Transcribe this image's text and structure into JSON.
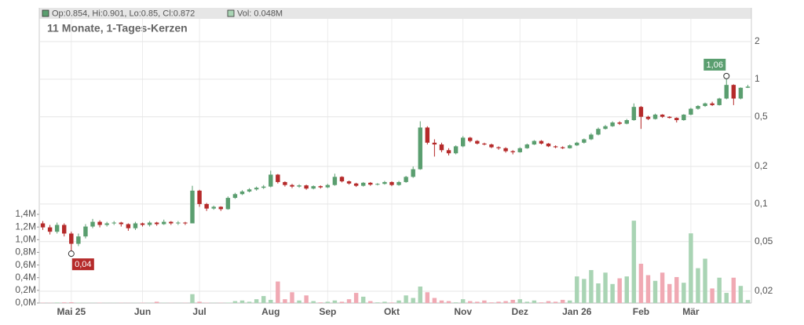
{
  "chart_data": {
    "type": "candlestick",
    "title": "11 Monate, 1-Tages-Kerzen",
    "ohlc_label": "Op:0.854, Hi:0.901, Lo:0.85, Cl:0.872",
    "volume_label": "Vol: 0.048M",
    "low_label": "0,04",
    "high_label": "1,06",
    "up_color": "#5a9e6f",
    "down_color": "#b52a2a",
    "volume_up_color": "#a9d4b4",
    "volume_down_color": "#f0a9b3",
    "log_scale": true,
    "grid": true,
    "categories": [
      null,
      null,
      null,
      null,
      "Mai 25",
      null,
      null,
      null,
      null,
      null,
      null,
      null,
      null,
      null,
      "Jun",
      null,
      null,
      null,
      null,
      null,
      null,
      null,
      "Jul",
      null,
      null,
      null,
      null,
      null,
      null,
      null,
      null,
      null,
      "Aug",
      null,
      null,
      null,
      null,
      null,
      null,
      null,
      "Sep",
      null,
      null,
      null,
      null,
      null,
      null,
      null,
      null,
      "Okt",
      null,
      null,
      null,
      null,
      null,
      null,
      null,
      null,
      null,
      "Nov",
      null,
      null,
      null,
      null,
      null,
      null,
      null,
      "Dez",
      null,
      null,
      null,
      null,
      null,
      null,
      null,
      "Jan 26",
      null,
      null,
      null,
      null,
      null,
      null,
      null,
      null,
      "Feb",
      null,
      null,
      null,
      null,
      null,
      null,
      "Mär",
      null,
      null,
      null,
      null,
      null,
      null,
      null,
      null
    ],
    "open": [
      0.07,
      0.065,
      0.06,
      0.068,
      0.058,
      0.048,
      0.055,
      0.066,
      0.072,
      0.068,
      0.07,
      0.071,
      0.069,
      0.064,
      0.07,
      0.068,
      0.071,
      0.069,
      0.072,
      0.07,
      0.071,
      0.07,
      0.128,
      0.1,
      0.092,
      0.095,
      0.091,
      0.112,
      0.12,
      0.126,
      0.131,
      0.135,
      0.138,
      0.172,
      0.15,
      0.142,
      0.138,
      0.141,
      0.133,
      0.139,
      0.136,
      0.142,
      0.165,
      0.152,
      0.146,
      0.14,
      0.148,
      0.143,
      0.145,
      0.15,
      0.142,
      0.15,
      0.165,
      0.19,
      0.41,
      0.31,
      0.3,
      0.27,
      0.255,
      0.29,
      0.34,
      0.32,
      0.305,
      0.3,
      0.285,
      0.28,
      0.265,
      0.26,
      0.28,
      0.3,
      0.32,
      0.305,
      0.29,
      0.285,
      0.28,
      0.295,
      0.31,
      0.33,
      0.36,
      0.4,
      0.42,
      0.45,
      0.44,
      0.47,
      0.6,
      0.5,
      0.48,
      0.52,
      0.5,
      0.49,
      0.47,
      0.52,
      0.58,
      0.61,
      0.64,
      0.62,
      0.7,
      0.9,
      0.7,
      0.854
    ],
    "high": [
      0.073,
      0.068,
      0.071,
      0.07,
      0.06,
      0.058,
      0.069,
      0.076,
      0.074,
      0.072,
      0.073,
      0.072,
      0.07,
      0.072,
      0.071,
      0.073,
      0.072,
      0.075,
      0.073,
      0.073,
      0.072,
      0.14,
      0.13,
      0.102,
      0.097,
      0.096,
      0.115,
      0.123,
      0.129,
      0.134,
      0.138,
      0.142,
      0.185,
      0.174,
      0.152,
      0.145,
      0.144,
      0.143,
      0.141,
      0.141,
      0.145,
      0.175,
      0.167,
      0.154,
      0.148,
      0.15,
      0.15,
      0.147,
      0.153,
      0.152,
      0.153,
      0.168,
      0.2,
      0.46,
      0.42,
      0.33,
      0.31,
      0.28,
      0.295,
      0.35,
      0.345,
      0.325,
      0.31,
      0.305,
      0.29,
      0.285,
      0.27,
      0.285,
      0.305,
      0.325,
      0.325,
      0.308,
      0.295,
      0.29,
      0.3,
      0.315,
      0.335,
      0.37,
      0.41,
      0.43,
      0.46,
      0.46,
      0.48,
      0.64,
      0.61,
      0.51,
      0.53,
      0.525,
      0.505,
      0.495,
      0.525,
      0.59,
      0.62,
      0.65,
      0.66,
      0.71,
      1.06,
      0.91,
      0.86,
      0.901
    ],
    "low": [
      0.062,
      0.057,
      0.058,
      0.055,
      0.04,
      0.046,
      0.053,
      0.064,
      0.065,
      0.066,
      0.068,
      0.066,
      0.061,
      0.062,
      0.066,
      0.066,
      0.067,
      0.068,
      0.068,
      0.068,
      0.068,
      0.07,
      0.095,
      0.088,
      0.09,
      0.088,
      0.09,
      0.11,
      0.118,
      0.124,
      0.128,
      0.132,
      0.136,
      0.146,
      0.138,
      0.134,
      0.135,
      0.13,
      0.131,
      0.133,
      0.134,
      0.14,
      0.149,
      0.143,
      0.137,
      0.138,
      0.14,
      0.141,
      0.143,
      0.139,
      0.14,
      0.148,
      0.162,
      0.188,
      0.3,
      0.24,
      0.26,
      0.245,
      0.25,
      0.285,
      0.312,
      0.3,
      0.295,
      0.28,
      0.272,
      0.258,
      0.25,
      0.258,
      0.277,
      0.297,
      0.3,
      0.286,
      0.28,
      0.276,
      0.278,
      0.292,
      0.305,
      0.325,
      0.355,
      0.395,
      0.415,
      0.43,
      0.435,
      0.465,
      0.4,
      0.47,
      0.475,
      0.49,
      0.485,
      0.45,
      0.465,
      0.515,
      0.57,
      0.6,
      0.61,
      0.615,
      0.69,
      0.62,
      0.69,
      0.85
    ],
    "close": [
      0.065,
      0.06,
      0.068,
      0.058,
      0.048,
      0.055,
      0.066,
      0.072,
      0.068,
      0.07,
      0.071,
      0.069,
      0.064,
      0.07,
      0.068,
      0.071,
      0.069,
      0.072,
      0.07,
      0.071,
      0.07,
      0.128,
      0.1,
      0.092,
      0.095,
      0.091,
      0.112,
      0.12,
      0.126,
      0.131,
      0.135,
      0.138,
      0.172,
      0.15,
      0.142,
      0.138,
      0.141,
      0.133,
      0.139,
      0.136,
      0.142,
      0.165,
      0.152,
      0.146,
      0.14,
      0.148,
      0.143,
      0.145,
      0.15,
      0.142,
      0.15,
      0.165,
      0.19,
      0.41,
      0.31,
      0.3,
      0.27,
      0.255,
      0.29,
      0.34,
      0.32,
      0.305,
      0.3,
      0.285,
      0.28,
      0.265,
      0.26,
      0.28,
      0.3,
      0.32,
      0.305,
      0.29,
      0.285,
      0.28,
      0.295,
      0.31,
      0.33,
      0.36,
      0.4,
      0.42,
      0.45,
      0.44,
      0.47,
      0.6,
      0.5,
      0.48,
      0.52,
      0.5,
      0.49,
      0.47,
      0.52,
      0.58,
      0.61,
      0.64,
      0.62,
      0.7,
      0.9,
      0.7,
      0.854,
      0.872
    ],
    "volume": [
      5000,
      3000,
      8000,
      10000,
      12000,
      6000,
      4000,
      3000,
      5000,
      2000,
      3000,
      4000,
      2000,
      3000,
      5000,
      3000,
      20000,
      4000,
      3000,
      2000,
      3000,
      140000,
      20000,
      5000,
      3000,
      4000,
      6000,
      30000,
      40000,
      20000,
      60000,
      110000,
      50000,
      340000,
      60000,
      170000,
      40000,
      120000,
      30000,
      10000,
      20000,
      40000,
      20000,
      60000,
      160000,
      100000,
      30000,
      10000,
      20000,
      8000,
      40000,
      120000,
      80000,
      260000,
      170000,
      80000,
      40000,
      30000,
      10000,
      60000,
      30000,
      20000,
      40000,
      10000,
      20000,
      30000,
      50000,
      60000,
      20000,
      40000,
      10000,
      30000,
      20000,
      50000,
      40000,
      420000,
      380000,
      520000,
      310000,
      480000,
      300000,
      390000,
      420000,
      1300000,
      620000,
      440000,
      350000,
      480000,
      300000,
      410000,
      320000,
      1100000,
      550000,
      700000,
      230000,
      400000,
      160000,
      400000,
      270000,
      48000
    ],
    "ylim": [
      0.0161,
      3.73
    ],
    "yticks": [
      {
        "value": 0.02,
        "label": "0,02"
      },
      {
        "value": 0.05,
        "label": "0,05"
      },
      {
        "value": 0.1,
        "label": "0,1"
      },
      {
        "value": 0.2,
        "label": "0,2"
      },
      {
        "value": 0.5,
        "label": "0,5"
      },
      1,
      2
    ],
    "y2lim": [
      0,
      4660000
    ],
    "y2ticks": [
      {
        "value": 0,
        "label": "0,0M"
      },
      {
        "value": 200000,
        "label": "0,2M"
      },
      {
        "value": 400000,
        "label": "0,4M"
      },
      {
        "value": 600000,
        "label": "0,6M"
      },
      {
        "value": 800000,
        "label": "0,8M"
      },
      {
        "value": 1000000,
        "label": "1,0M"
      },
      {
        "value": 1200000,
        "label": "1,2M"
      },
      {
        "value": 1400000,
        "label": "1,4M"
      }
    ]
  }
}
